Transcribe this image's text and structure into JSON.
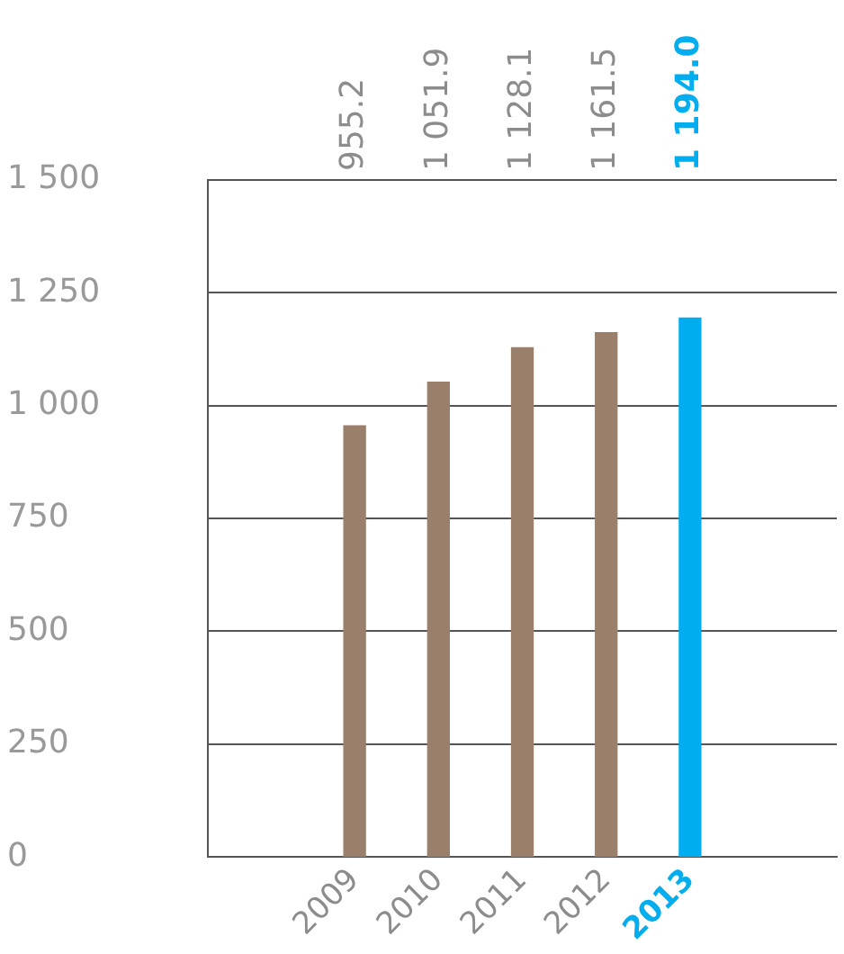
{
  "chart_data": {
    "type": "bar",
    "categories": [
      "2009",
      "2010",
      "2011",
      "2012",
      "2013"
    ],
    "values": [
      955.2,
      1051.9,
      1128.1,
      1161.5,
      1194.0
    ],
    "colors": [
      "#9a7f6a",
      "#9a7f6a",
      "#9a7f6a",
      "#9a7f6a",
      "#00aeef"
    ],
    "value_labels": [
      "955.2",
      "1 051.9",
      "1 128.1",
      "1 161.5",
      "1 194.0"
    ],
    "ylim": [
      0,
      1500
    ],
    "yticks": [
      0,
      250,
      500,
      750,
      {
        "value": 1000,
        "label": "1 000"
      },
      {
        "value": 1250,
        "label": "1 250"
      },
      {
        "value": 1500,
        "label": "1 500"
      }
    ],
    "grid": "y",
    "legend": false
  }
}
